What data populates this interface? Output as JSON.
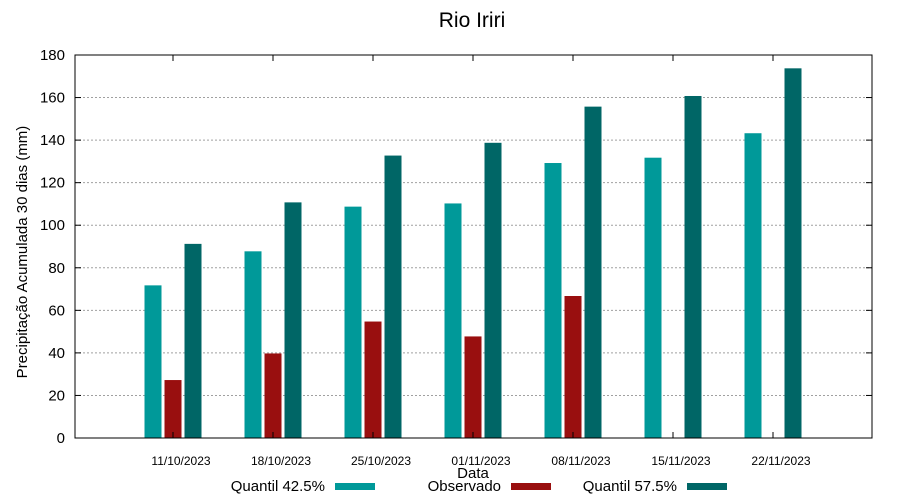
{
  "chart_data": {
    "type": "bar",
    "title": "Rio Iriri",
    "xlabel": "Data",
    "ylabel": "Precipitação Acumulada 30 dias (mm)",
    "ylim": [
      0,
      180
    ],
    "yticks": [
      0,
      20,
      40,
      60,
      80,
      100,
      120,
      140,
      160,
      180
    ],
    "grid": true,
    "legend_position": "bottom",
    "categories": [
      "11/10/2023",
      "18/10/2023",
      "25/10/2023",
      "01/11/2023",
      "08/11/2023",
      "15/11/2023",
      "22/11/2023"
    ],
    "series": [
      {
        "name": "Quantil 42.5%",
        "color": "#009999",
        "values": [
          71.5,
          87.5,
          108.5,
          110,
          129,
          131.5,
          143
        ]
      },
      {
        "name": "Observado",
        "color": "#990f0f",
        "values": [
          27,
          39.5,
          54.5,
          47.5,
          66.5,
          null,
          null
        ]
      },
      {
        "name": "Quantil 57.5%",
        "color": "#006666",
        "values": [
          91,
          110.5,
          132.5,
          138.5,
          155.5,
          160.5,
          173.5
        ]
      }
    ]
  }
}
